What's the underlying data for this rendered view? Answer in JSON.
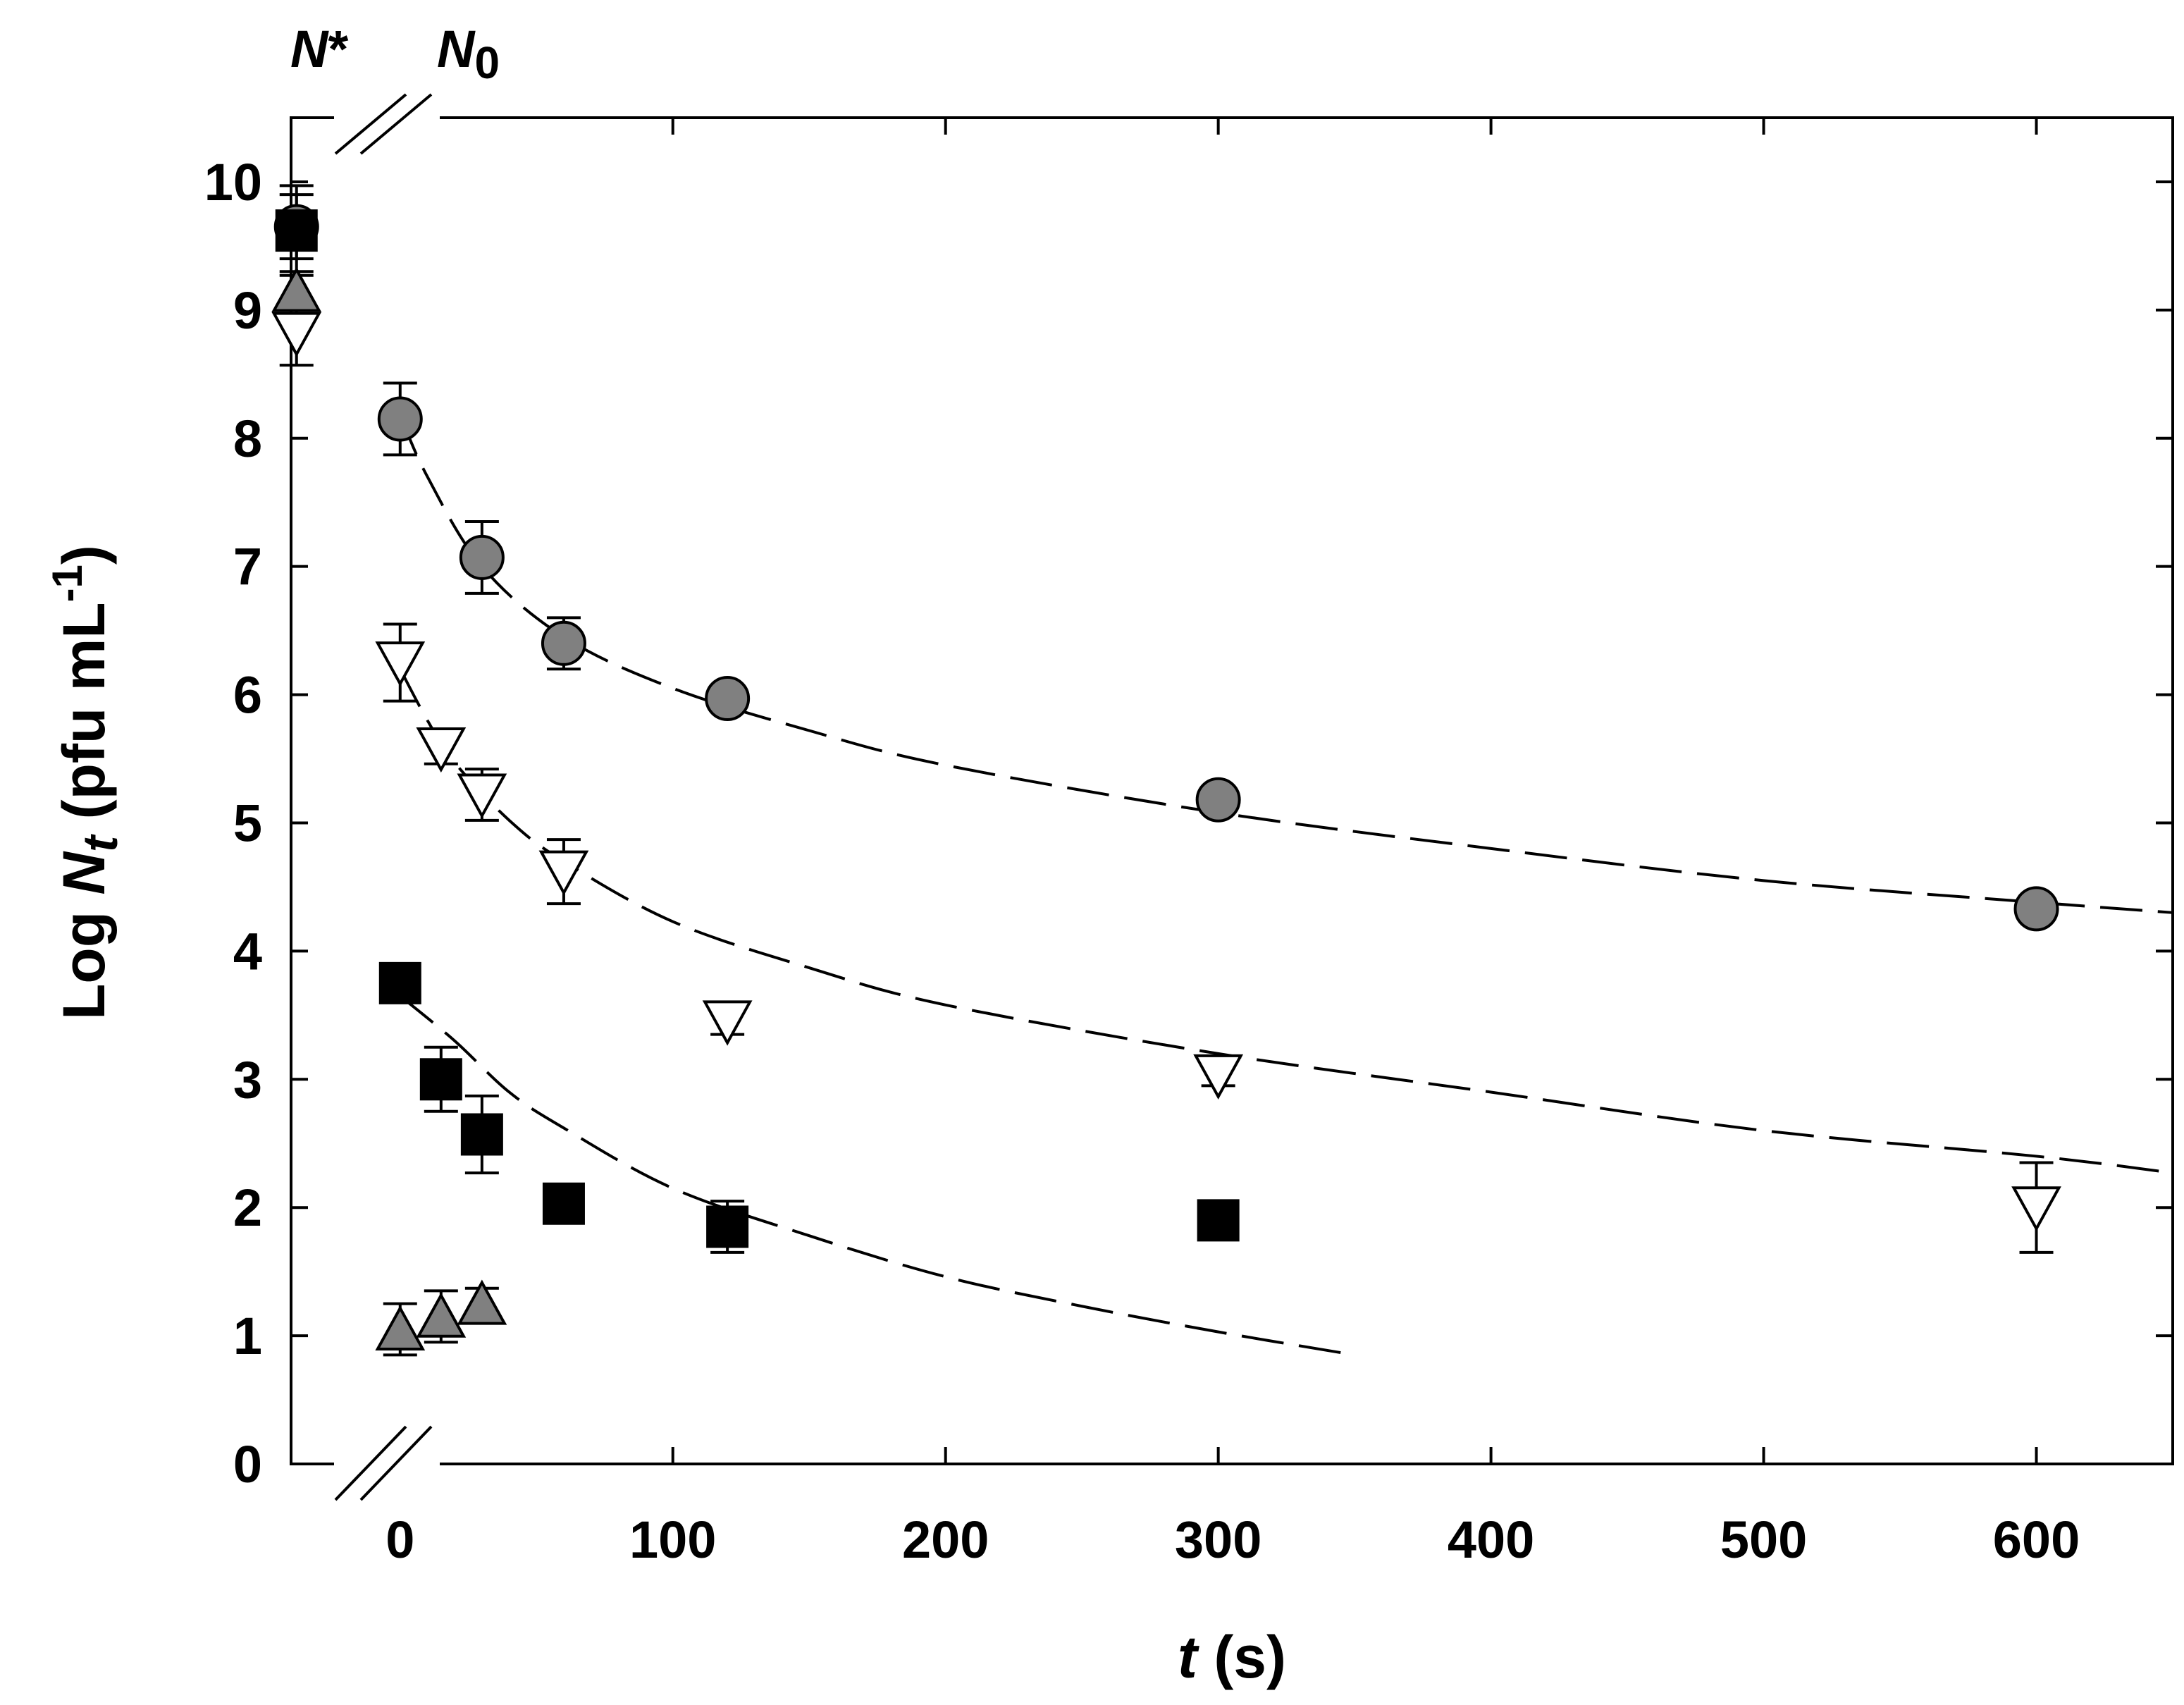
{
  "chart_data": {
    "type": "scatter",
    "title": "",
    "xlabel": {
      "var": "t",
      "rest": " (s)"
    },
    "ylabel": {
      "prefix": "Log ",
      "var": "N",
      "sub": "t",
      "unit": " (pfu mL",
      "sup": "-1",
      "close": ")"
    },
    "break_labels": {
      "n_star": {
        "var": "N",
        "mark": "*"
      },
      "n_zero": {
        "var": "N",
        "sub": "0"
      }
    },
    "xlim": [
      -40,
      650
    ],
    "ylim": [
      0,
      10.5
    ],
    "xticks": [
      0,
      100,
      200,
      300,
      400,
      500,
      600
    ],
    "yticks": [
      0,
      1,
      2,
      3,
      4,
      5,
      6,
      7,
      8,
      9,
      10
    ],
    "n_star_x": -38,
    "series": [
      {
        "name": "gray circles",
        "marker": "circle",
        "color": "#808080",
        "n_star": {
          "y": 9.65,
          "err": 0.25
        },
        "points": [
          {
            "x": 0,
            "y": 8.15,
            "err": 0.28
          },
          {
            "x": 30,
            "y": 7.07,
            "err": 0.28
          },
          {
            "x": 60,
            "y": 6.4,
            "err": 0.2
          },
          {
            "x": 120,
            "y": 5.97,
            "err": 0.08
          },
          {
            "x": 300,
            "y": 5.18,
            "err": 0.07
          },
          {
            "x": 600,
            "y": 4.33,
            "err": 0.07
          }
        ],
        "fit": {
          "x_start": 0,
          "x_end": 650,
          "points": [
            [
              0,
              8.18
            ],
            [
              10,
              7.7
            ],
            [
              30,
              7.0
            ],
            [
              60,
              6.45
            ],
            [
              100,
              6.05
            ],
            [
              150,
              5.72
            ],
            [
              200,
              5.45
            ],
            [
              300,
              5.08
            ],
            [
              400,
              4.8
            ],
            [
              500,
              4.55
            ],
            [
              600,
              4.38
            ],
            [
              650,
              4.3
            ]
          ]
        }
      },
      {
        "name": "open down-triangles",
        "marker": "triangle-down",
        "color": "#ffffff",
        "n_star": {
          "y": 8.82,
          "err": 0.25
        },
        "points": [
          {
            "x": 0,
            "y": 6.25,
            "err": 0.3
          },
          {
            "x": 15,
            "y": 5.58,
            "err": 0.12
          },
          {
            "x": 30,
            "y": 5.22,
            "err": 0.2
          },
          {
            "x": 60,
            "y": 4.62,
            "err": 0.25
          },
          {
            "x": 120,
            "y": 3.45,
            "err": 0.1
          },
          {
            "x": 300,
            "y": 3.03,
            "err": 0.08
          },
          {
            "x": 600,
            "y": 2.0,
            "err": 0.35
          }
        ],
        "fit": {
          "x_start": 0,
          "x_end": 650,
          "points": [
            [
              0,
              6.2
            ],
            [
              10,
              5.8
            ],
            [
              20,
              5.47
            ],
            [
              40,
              5.02
            ],
            [
              60,
              4.7
            ],
            [
              100,
              4.23
            ],
            [
              150,
              3.87
            ],
            [
              200,
              3.58
            ],
            [
              300,
              3.2
            ],
            [
              400,
              2.9
            ],
            [
              500,
              2.6
            ],
            [
              600,
              2.4
            ],
            [
              650,
              2.27
            ]
          ]
        }
      },
      {
        "name": "black squares",
        "marker": "square",
        "color": "#000000",
        "n_star": {
          "y": 9.62,
          "err": 0.35
        },
        "points": [
          {
            "x": 0,
            "y": 3.75,
            "err": 0.07
          },
          {
            "x": 15,
            "y": 3.0,
            "err": 0.25
          },
          {
            "x": 30,
            "y": 2.57,
            "err": 0.3
          },
          {
            "x": 60,
            "y": 2.03,
            "err": 0.06
          },
          {
            "x": 120,
            "y": 1.85,
            "err": 0.2
          },
          {
            "x": 300,
            "y": 1.9,
            "err": 0.06
          }
        ],
        "fit": {
          "x_start": 0,
          "x_end": 350,
          "points": [
            [
              0,
              3.65
            ],
            [
              20,
              3.3
            ],
            [
              40,
              2.9
            ],
            [
              60,
              2.62
            ],
            [
              100,
              2.15
            ],
            [
              150,
              1.78
            ],
            [
              200,
              1.46
            ],
            [
              250,
              1.23
            ],
            [
              300,
              1.03
            ],
            [
              350,
              0.85
            ]
          ]
        }
      },
      {
        "name": "gray up-triangles",
        "marker": "triangle-up",
        "color": "#808080",
        "n_star": {
          "y": 9.15,
          "err": 0.15
        },
        "points": [
          {
            "x": 0,
            "y": 1.05,
            "err": 0.2
          },
          {
            "x": 15,
            "y": 1.15,
            "err": 0.2
          },
          {
            "x": 30,
            "y": 1.25,
            "err": 0.12
          }
        ]
      }
    ]
  }
}
